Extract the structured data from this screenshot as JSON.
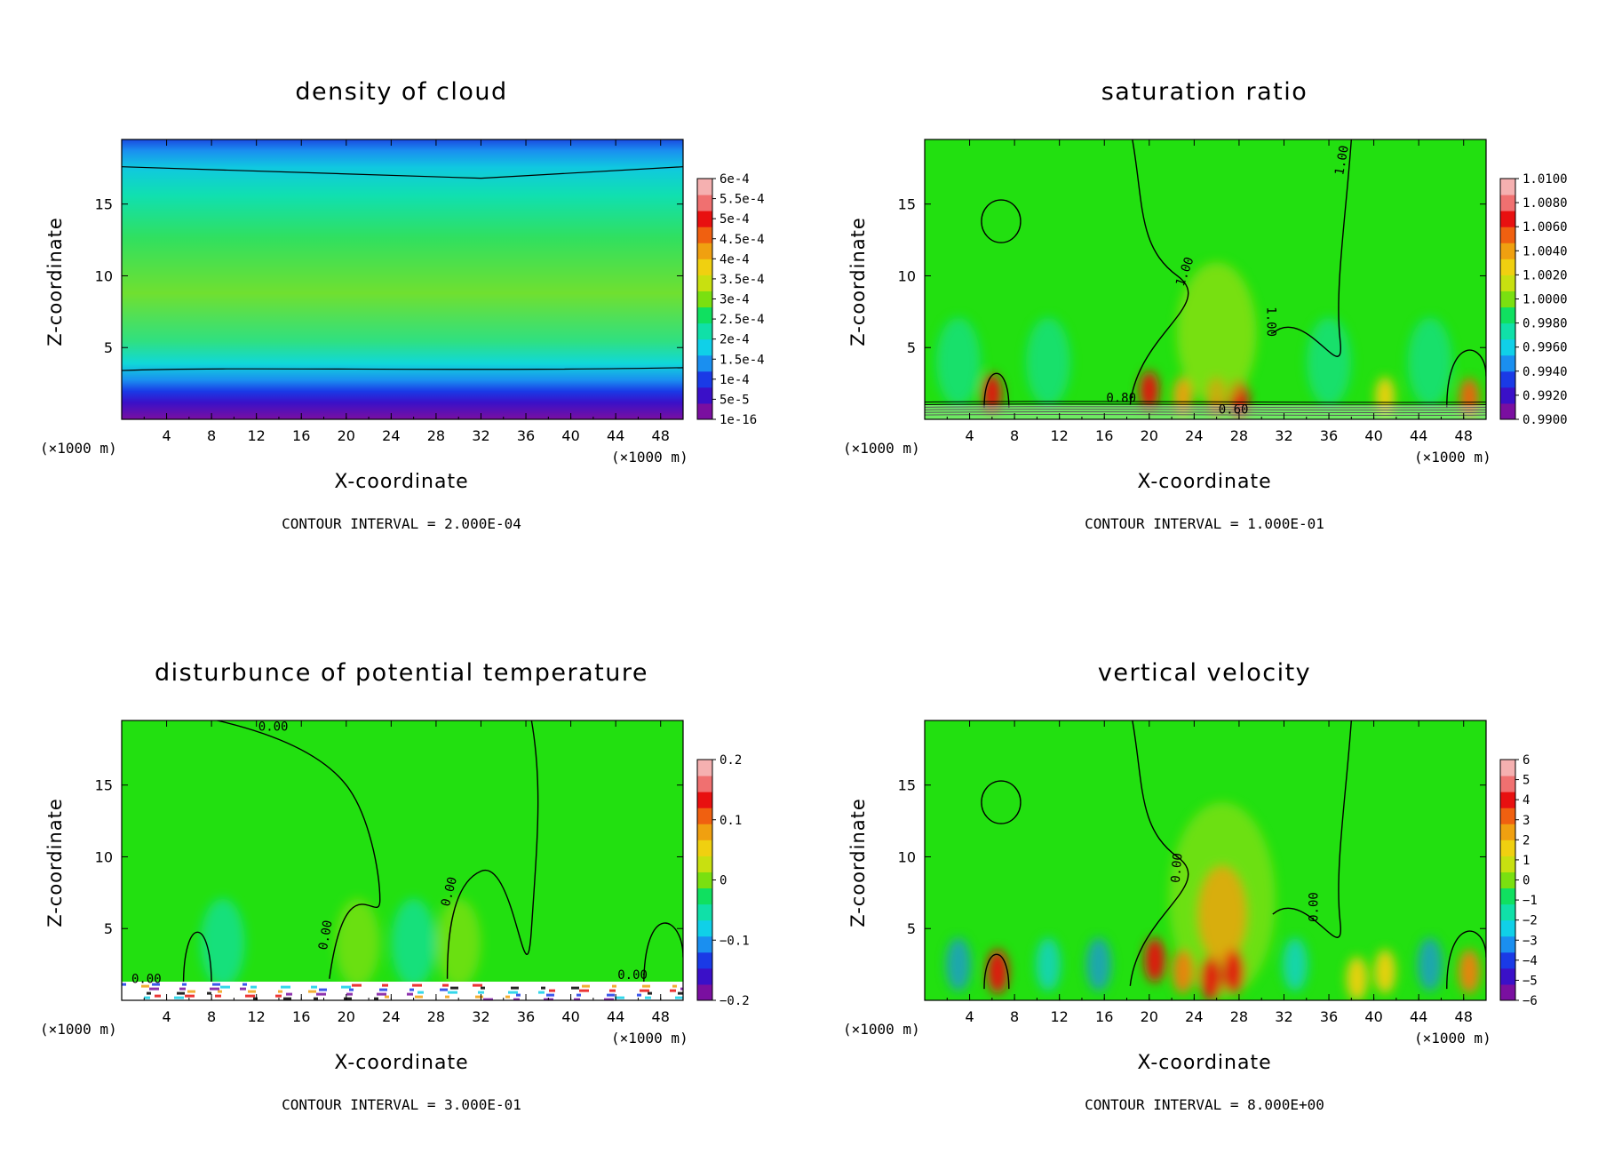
{
  "chart_data": [
    {
      "type": "heatmap",
      "title": "density of cloud",
      "xlabel": "X-coordinate",
      "ylabel": "Z-coordinate",
      "x_unit": "(×1000 m)",
      "x_unit_right": "(×1000 m)",
      "x_ticks": [
        "4",
        "8",
        "12",
        "16",
        "20",
        "24",
        "28",
        "32",
        "36",
        "40",
        "44",
        "48"
      ],
      "y_ticks": [
        "5",
        "10",
        "15"
      ],
      "xlim": [
        0,
        50
      ],
      "ylim": [
        0,
        19.5
      ],
      "colorbar_labels": [
        "6e-4",
        "5.5e-4",
        "5e-4",
        "4.5e-4",
        "4e-4",
        "3.5e-4",
        "3e-4",
        "2.5e-4",
        "2e-4",
        "1.5e-4",
        "1e-4",
        "5e-5",
        "1e-16"
      ],
      "contour_labels": [],
      "contour_interval": "CONTOUR INTERVAL = 2.000E-04"
    },
    {
      "type": "heatmap",
      "title": "saturation ratio",
      "xlabel": "X-coordinate",
      "ylabel": "Z-coordinate",
      "x_unit": "(×1000 m)",
      "x_unit_right": "(×1000 m)",
      "x_ticks": [
        "4",
        "8",
        "12",
        "16",
        "20",
        "24",
        "28",
        "32",
        "36",
        "40",
        "44",
        "48"
      ],
      "y_ticks": [
        "5",
        "10",
        "15"
      ],
      "xlim": [
        0,
        50
      ],
      "ylim": [
        0,
        19.5
      ],
      "colorbar_labels": [
        "1.0100",
        "1.0080",
        "1.0060",
        "1.0040",
        "1.0020",
        "1.0000",
        "0.9980",
        "0.9960",
        "0.9940",
        "0.9920",
        "0.9900"
      ],
      "contour_labels": [
        "1.00",
        "1.00",
        "1.00",
        "0.80",
        "0.60"
      ],
      "contour_interval": "CONTOUR INTERVAL = 1.000E-01"
    },
    {
      "type": "heatmap",
      "title": "disturbunce of potential temperature",
      "xlabel": "X-coordinate",
      "ylabel": "Z-coordinate",
      "x_unit": "(×1000 m)",
      "x_unit_right": "(×1000 m)",
      "x_ticks": [
        "4",
        "8",
        "12",
        "16",
        "20",
        "24",
        "28",
        "32",
        "36",
        "40",
        "44",
        "48"
      ],
      "y_ticks": [
        "5",
        "10",
        "15"
      ],
      "xlim": [
        0,
        50
      ],
      "ylim": [
        0,
        19.5
      ],
      "colorbar_labels": [
        "0.2",
        "0.1",
        "0",
        "−0.1",
        "−0.2"
      ],
      "contour_labels": [
        "0.00",
        "0.00",
        "0.00",
        "0.00",
        "0.00"
      ],
      "contour_interval": "CONTOUR INTERVAL = 3.000E-01"
    },
    {
      "type": "heatmap",
      "title": "vertical velocity",
      "xlabel": "X-coordinate",
      "ylabel": "Z-coordinate",
      "x_unit": "(×1000 m)",
      "x_unit_right": "(×1000 m)",
      "x_ticks": [
        "4",
        "8",
        "12",
        "16",
        "20",
        "24",
        "28",
        "32",
        "36",
        "40",
        "44",
        "48"
      ],
      "y_ticks": [
        "5",
        "10",
        "15"
      ],
      "xlim": [
        0,
        50
      ],
      "ylim": [
        0,
        19.5
      ],
      "colorbar_labels": [
        "6",
        "5",
        "4",
        "3",
        "2",
        "1",
        "0",
        "−1",
        "−2",
        "−3",
        "−4",
        "−5",
        "−6"
      ],
      "contour_labels": [
        "0.00",
        "0.00"
      ],
      "contour_interval": "CONTOUR INTERVAL = 8.000E+00"
    }
  ]
}
